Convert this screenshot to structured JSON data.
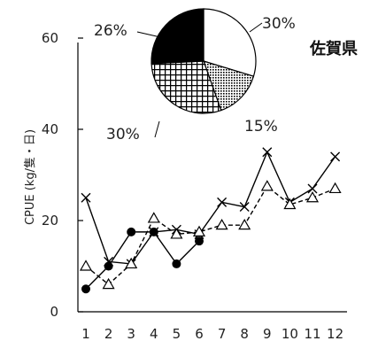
{
  "chart_data": [
    {
      "type": "line",
      "title": "佐賀県",
      "xlabel": "",
      "ylabel": "CPUE (kg/隻・日)",
      "x": [
        1,
        2,
        3,
        4,
        5,
        6,
        7,
        8,
        9,
        10,
        11,
        12
      ],
      "x_tick_labels": [
        "1",
        "2",
        "3",
        "4",
        "5",
        "6",
        "7",
        "8",
        "9",
        "10",
        "11",
        "12"
      ],
      "ylim": [
        0,
        60
      ],
      "y_ticks": [
        0,
        20,
        40,
        60
      ],
      "y_tick_labels": [
        "0",
        "20",
        "40",
        "60"
      ],
      "grid": false,
      "series": [
        {
          "marker": "x",
          "line": "solid",
          "color": "#000000",
          "values": [
            25,
            11,
            10.5,
            17.5,
            18,
            17,
            24,
            23,
            35,
            24,
            27,
            34
          ]
        },
        {
          "marker": "triangle-open",
          "line": "dashed",
          "color": "#000000",
          "values": [
            10,
            6,
            10.5,
            20.5,
            17,
            17.5,
            19,
            19,
            27.5,
            23.5,
            25,
            27
          ]
        },
        {
          "marker": "circle-filled",
          "line": "solid",
          "color": "#000000",
          "values": [
            5,
            10,
            17.5,
            17.5,
            10.5,
            15.5,
            null,
            null,
            null,
            null,
            null,
            null
          ]
        }
      ]
    },
    {
      "type": "pie",
      "slices": [
        {
          "label": "30%",
          "value": 30,
          "fill": "white"
        },
        {
          "label": "15%",
          "value": 15,
          "fill": "dots"
        },
        {
          "label": "30%",
          "value": 30,
          "fill": "grid"
        },
        {
          "label": "26%",
          "value": 26,
          "fill": "black"
        }
      ]
    }
  ]
}
